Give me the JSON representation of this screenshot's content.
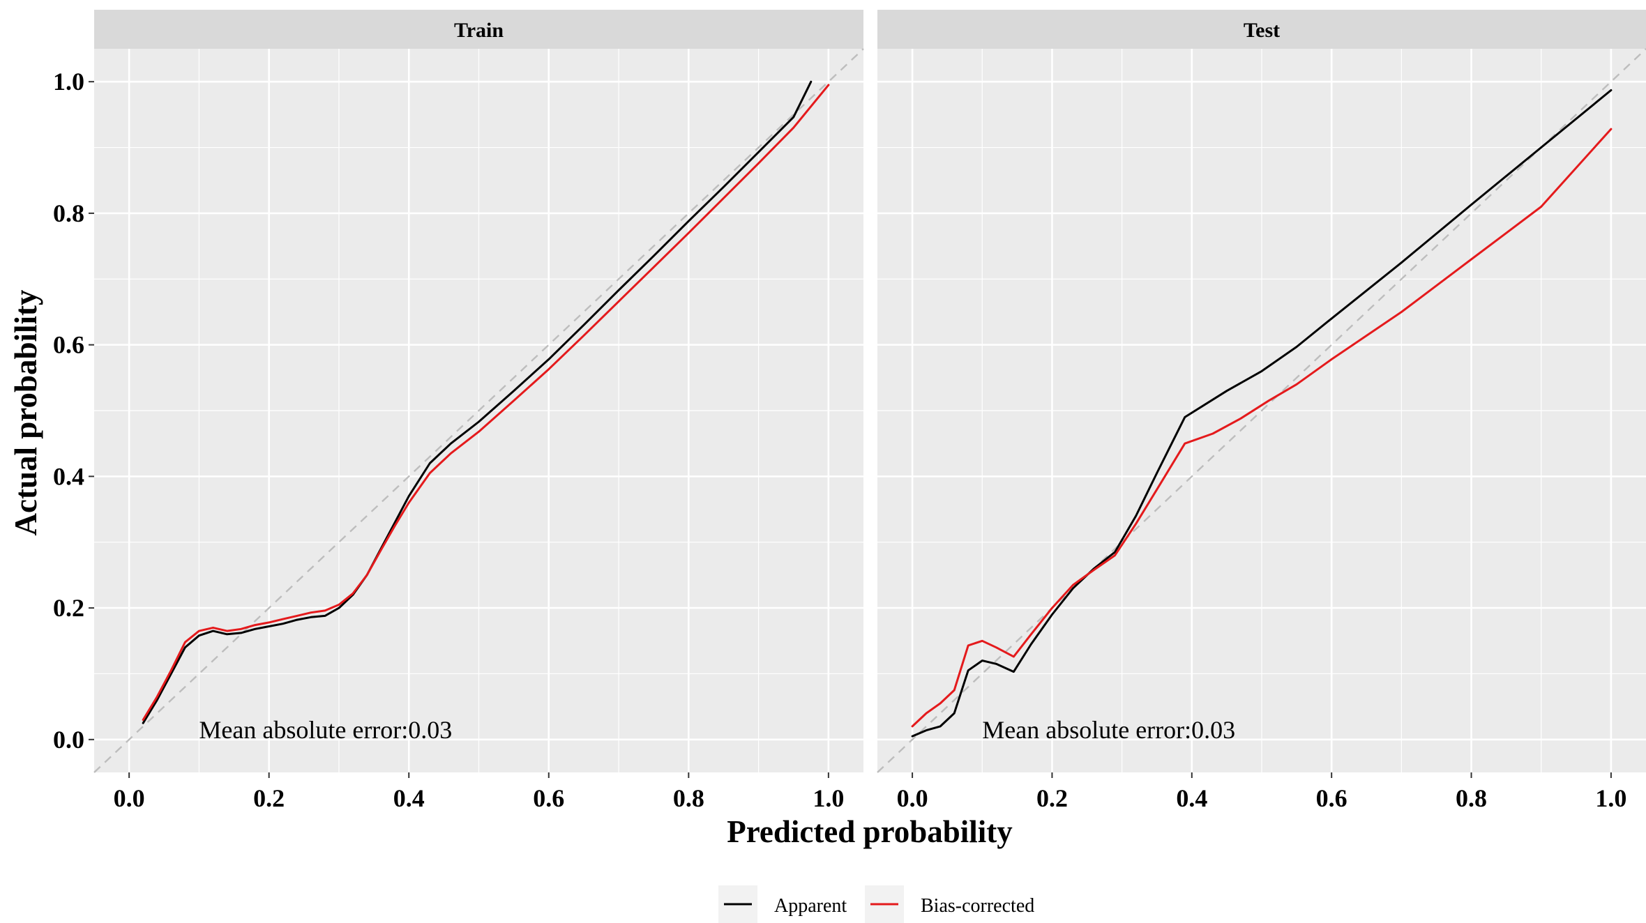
{
  "chart_data": {
    "type": "line",
    "xlabel": "Predicted probability",
    "ylabel": "Actual probability",
    "xlim": [
      -0.05,
      1.05
    ],
    "ylim": [
      -0.05,
      1.05
    ],
    "xticks": [
      "0.0",
      "0.2",
      "0.4",
      "0.6",
      "0.8",
      "1.0"
    ],
    "yticks": [
      "0.0",
      "0.2",
      "0.4",
      "0.6",
      "0.8",
      "1.0"
    ],
    "grid": true,
    "reference_line": "y = x (dashed)",
    "legend": {
      "position": "bottom",
      "items": [
        {
          "label": "Apparent",
          "color": "#000000"
        },
        {
          "label": "Bias-corrected",
          "color": "#e41a1c"
        }
      ]
    },
    "panels": [
      {
        "title": "Train",
        "annotation": "Mean absolute error:0.03",
        "series": [
          {
            "name": "Apparent",
            "color": "#000000",
            "points": [
              [
                0.02,
                0.025
              ],
              [
                0.04,
                0.06
              ],
              [
                0.06,
                0.1
              ],
              [
                0.08,
                0.14
              ],
              [
                0.1,
                0.158
              ],
              [
                0.12,
                0.165
              ],
              [
                0.14,
                0.16
              ],
              [
                0.16,
                0.162
              ],
              [
                0.18,
                0.168
              ],
              [
                0.2,
                0.172
              ],
              [
                0.22,
                0.176
              ],
              [
                0.24,
                0.182
              ],
              [
                0.26,
                0.186
              ],
              [
                0.28,
                0.188
              ],
              [
                0.3,
                0.2
              ],
              [
                0.32,
                0.22
              ],
              [
                0.34,
                0.25
              ],
              [
                0.36,
                0.29
              ],
              [
                0.38,
                0.33
              ],
              [
                0.4,
                0.37
              ],
              [
                0.43,
                0.42
              ],
              [
                0.46,
                0.45
              ],
              [
                0.5,
                0.483
              ],
              [
                0.55,
                0.53
              ],
              [
                0.6,
                0.578
              ],
              [
                0.65,
                0.63
              ],
              [
                0.7,
                0.683
              ],
              [
                0.75,
                0.735
              ],
              [
                0.8,
                0.788
              ],
              [
                0.85,
                0.84
              ],
              [
                0.9,
                0.893
              ],
              [
                0.95,
                0.946
              ],
              [
                0.975,
                1.0
              ]
            ]
          },
          {
            "name": "Bias-corrected",
            "color": "#e41a1c",
            "points": [
              [
                0.02,
                0.03
              ],
              [
                0.04,
                0.065
              ],
              [
                0.06,
                0.105
              ],
              [
                0.08,
                0.148
              ],
              [
                0.1,
                0.165
              ],
              [
                0.12,
                0.17
              ],
              [
                0.14,
                0.165
              ],
              [
                0.16,
                0.168
              ],
              [
                0.18,
                0.174
              ],
              [
                0.2,
                0.178
              ],
              [
                0.22,
                0.183
              ],
              [
                0.24,
                0.188
              ],
              [
                0.26,
                0.193
              ],
              [
                0.28,
                0.196
              ],
              [
                0.3,
                0.205
              ],
              [
                0.32,
                0.222
              ],
              [
                0.34,
                0.25
              ],
              [
                0.36,
                0.288
              ],
              [
                0.38,
                0.325
              ],
              [
                0.4,
                0.36
              ],
              [
                0.43,
                0.405
              ],
              [
                0.46,
                0.435
              ],
              [
                0.5,
                0.468
              ],
              [
                0.55,
                0.515
              ],
              [
                0.6,
                0.563
              ],
              [
                0.65,
                0.614
              ],
              [
                0.7,
                0.666
              ],
              [
                0.75,
                0.718
              ],
              [
                0.8,
                0.77
              ],
              [
                0.85,
                0.823
              ],
              [
                0.9,
                0.876
              ],
              [
                0.95,
                0.93
              ],
              [
                1.0,
                0.995
              ]
            ]
          }
        ]
      },
      {
        "title": "Test",
        "annotation": "Mean absolute error:0.03",
        "series": [
          {
            "name": "Apparent",
            "color": "#000000",
            "points": [
              [
                0.0,
                0.005
              ],
              [
                0.02,
                0.014
              ],
              [
                0.04,
                0.02
              ],
              [
                0.06,
                0.04
              ],
              [
                0.08,
                0.105
              ],
              [
                0.1,
                0.12
              ],
              [
                0.12,
                0.115
              ],
              [
                0.145,
                0.103
              ],
              [
                0.17,
                0.145
              ],
              [
                0.2,
                0.19
              ],
              [
                0.23,
                0.23
              ],
              [
                0.26,
                0.26
              ],
              [
                0.29,
                0.285
              ],
              [
                0.32,
                0.34
              ],
              [
                0.35,
                0.405
              ],
              [
                0.39,
                0.49
              ],
              [
                0.45,
                0.53
              ],
              [
                0.5,
                0.56
              ],
              [
                0.55,
                0.597
              ],
              [
                0.6,
                0.64
              ],
              [
                0.7,
                0.725
              ],
              [
                0.8,
                0.813
              ],
              [
                0.9,
                0.9
              ],
              [
                1.0,
                0.987
              ]
            ]
          },
          {
            "name": "Bias-corrected",
            "color": "#e41a1c",
            "points": [
              [
                0.0,
                0.02
              ],
              [
                0.02,
                0.04
              ],
              [
                0.04,
                0.055
              ],
              [
                0.06,
                0.075
              ],
              [
                0.08,
                0.143
              ],
              [
                0.1,
                0.15
              ],
              [
                0.12,
                0.14
              ],
              [
                0.145,
                0.126
              ],
              [
                0.17,
                0.16
              ],
              [
                0.2,
                0.2
              ],
              [
                0.23,
                0.235
              ],
              [
                0.26,
                0.258
              ],
              [
                0.29,
                0.28
              ],
              [
                0.32,
                0.328
              ],
              [
                0.35,
                0.38
              ],
              [
                0.39,
                0.45
              ],
              [
                0.43,
                0.465
              ],
              [
                0.47,
                0.488
              ],
              [
                0.51,
                0.515
              ],
              [
                0.55,
                0.54
              ],
              [
                0.6,
                0.578
              ],
              [
                0.7,
                0.65
              ],
              [
                0.8,
                0.73
              ],
              [
                0.9,
                0.81
              ],
              [
                1.0,
                0.928
              ]
            ]
          }
        ]
      }
    ]
  }
}
